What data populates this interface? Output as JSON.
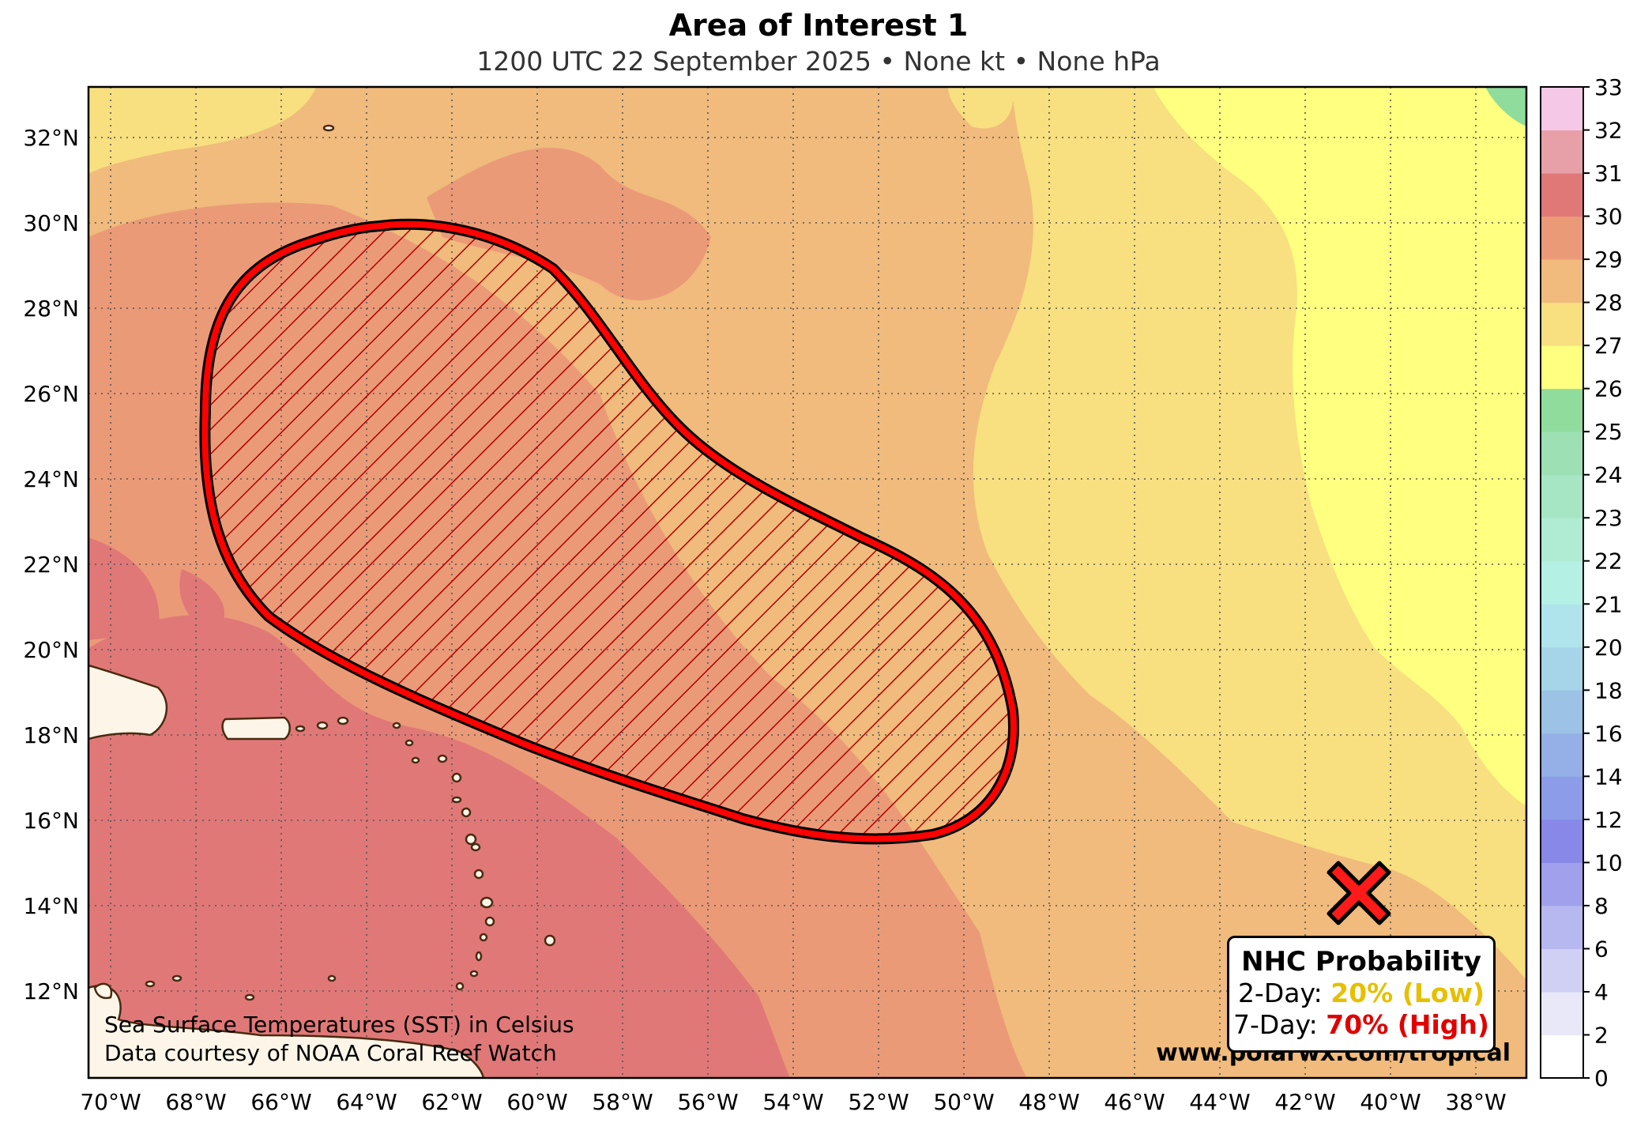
{
  "title": "Area of Interest 1",
  "subtitle": "1200 UTC 22 September 2025 • None kt • None hPa",
  "map": {
    "lon_ticks": [
      "70°W",
      "68°W",
      "66°W",
      "64°W",
      "62°W",
      "60°W",
      "58°W",
      "56°W",
      "54°W",
      "52°W",
      "50°W",
      "48°W",
      "46°W",
      "44°W",
      "42°W",
      "40°W",
      "38°W"
    ],
    "lat_ticks": [
      "12°N",
      "14°N",
      "16°N",
      "18°N",
      "20°N",
      "22°N",
      "24°N",
      "26°N",
      "28°N",
      "30°N",
      "32°N"
    ],
    "lon_range": [
      -70.4,
      -36.8
    ],
    "lat_range": [
      10.0,
      33.3
    ],
    "outlook_area_color": "#ff0000",
    "disturbance_marker": "red-x-icon",
    "disturbance_position": {
      "lon": -40.7,
      "lat": 14.3
    },
    "credit_line1": "Sea Surface Temperatures (SST) in Celsius",
    "credit_line2": "Data courtesy of NOAA Coral Reef Watch",
    "watermark": "www.polarwx.com/tropical"
  },
  "probability": {
    "heading": "NHC Probability",
    "two_day_label": "2-Day:",
    "two_day_value": "20% (Low)",
    "two_day_color": "#e6c000",
    "seven_day_label": "7-Day:",
    "seven_day_value": "70% (High)",
    "seven_day_color": "#e00000"
  },
  "colorbar": {
    "ticks": [
      "0",
      "2",
      "4",
      "6",
      "8",
      "10",
      "12",
      "14",
      "16",
      "18",
      "20",
      "21",
      "22",
      "23",
      "24",
      "25",
      "26",
      "27",
      "28",
      "29",
      "30",
      "31",
      "32",
      "33"
    ],
    "colors": [
      "#ffffff",
      "#e8e8f8",
      "#d0d0f4",
      "#b8b8f0",
      "#a0a0ec",
      "#8888e8",
      "#8c9ce8",
      "#94b0e6",
      "#9cc2e6",
      "#a6d4e8",
      "#b0e4ec",
      "#b4f0e4",
      "#b0ecd4",
      "#a6e6c4",
      "#9ce0b4",
      "#90dc9c",
      "#ffff80",
      "#f8df80",
      "#f0bb7c",
      "#eb9a78",
      "#e07878",
      "#e8a0a8",
      "#f6c8e8"
    ]
  }
}
